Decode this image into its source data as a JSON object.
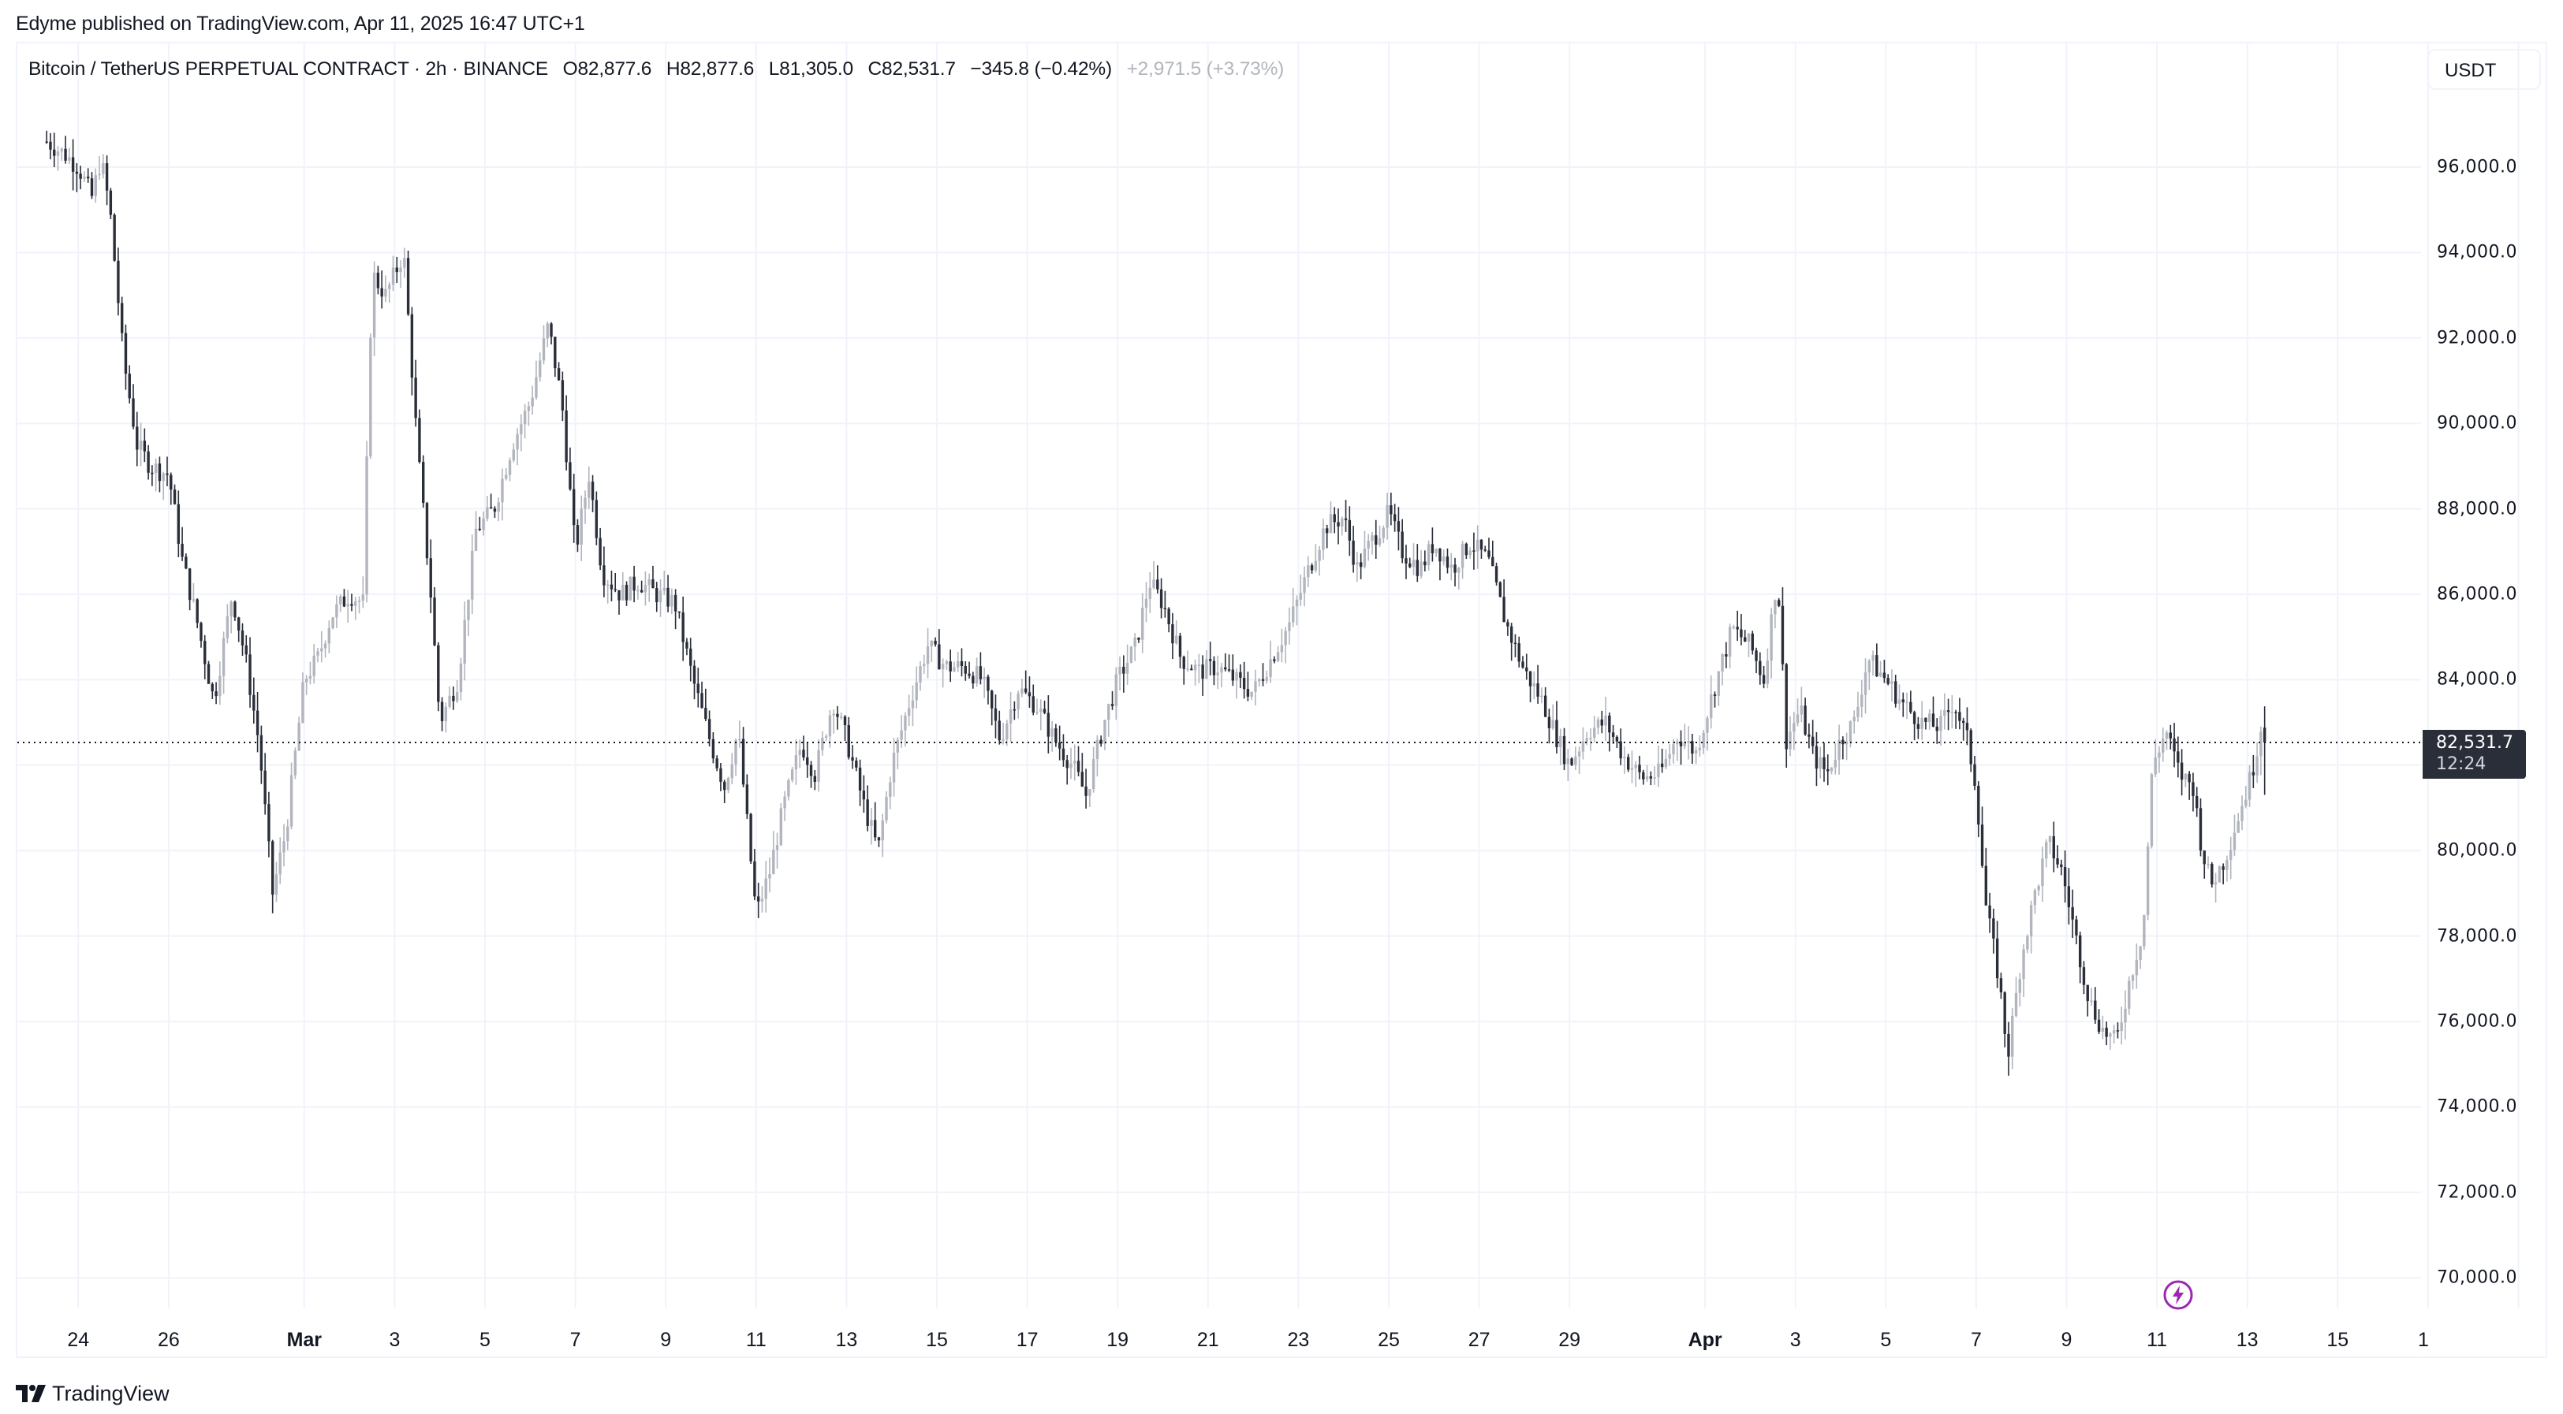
{
  "header": {
    "publisher_line": "Edyme published on TradingView.com, Apr 11, 2025 16:47 UTC+1"
  },
  "legend": {
    "symbol": "Bitcoin / TetherUS PERPETUAL CONTRACT · 2h · BINANCE",
    "open": "O82,877.6",
    "high": "H82,877.6",
    "low": "L81,305.0",
    "close": "C82,531.7",
    "change": "−345.8 (−0.42%)",
    "extra_change": "+2,971.5 (+3.73%)"
  },
  "currency_button": {
    "label": "USDT"
  },
  "last_price": {
    "value": "82,531.7",
    "countdown": "12:24",
    "bg_color": "#2a2e39"
  },
  "price_axis": {
    "labels": [
      "96,000.0",
      "94,000.0",
      "92,000.0",
      "90,000.0",
      "88,000.0",
      "86,000.0",
      "84,000.0",
      "80,000.0",
      "78,000.0",
      "76,000.0",
      "74,000.0",
      "72,000.0",
      "70,000.0"
    ]
  },
  "time_axis": {
    "labels": [
      {
        "text": "24",
        "bold": false
      },
      {
        "text": "26",
        "bold": false
      },
      {
        "text": "Mar",
        "bold": true
      },
      {
        "text": "3",
        "bold": false
      },
      {
        "text": "5",
        "bold": false
      },
      {
        "text": "7",
        "bold": false
      },
      {
        "text": "9",
        "bold": false
      },
      {
        "text": "11",
        "bold": false
      },
      {
        "text": "13",
        "bold": false
      },
      {
        "text": "15",
        "bold": false
      },
      {
        "text": "17",
        "bold": false
      },
      {
        "text": "19",
        "bold": false
      },
      {
        "text": "21",
        "bold": false
      },
      {
        "text": "23",
        "bold": false
      },
      {
        "text": "25",
        "bold": false
      },
      {
        "text": "27",
        "bold": false
      },
      {
        "text": "29",
        "bold": false
      },
      {
        "text": "Apr",
        "bold": true
      },
      {
        "text": "3",
        "bold": false
      },
      {
        "text": "5",
        "bold": false
      },
      {
        "text": "7",
        "bold": false
      },
      {
        "text": "9",
        "bold": false
      },
      {
        "text": "11",
        "bold": false
      },
      {
        "text": "13",
        "bold": false
      },
      {
        "text": "15",
        "bold": false
      },
      {
        "text": "1",
        "bold": false
      }
    ]
  },
  "footer": {
    "logo_text": "TradingView"
  },
  "icons": {
    "event_marker": "lightning-bolt-icon",
    "logo": "tradingview-logo-icon"
  },
  "colors": {
    "up_candle": "#b2b5be",
    "down_candle": "#2a2e39",
    "grid": "#f0f3fa",
    "event_marker": "#9c27b0",
    "text": "#131722",
    "muted": "#b2b5be"
  },
  "chart_data": {
    "type": "candlestick",
    "title": "Bitcoin / TetherUS PERPETUAL CONTRACT · 2h · BINANCE",
    "xlabel": "",
    "ylabel": "USDT",
    "ylim": [
      69500,
      97500
    ],
    "yticks": [
      70000,
      72000,
      74000,
      76000,
      78000,
      80000,
      82000,
      84000,
      86000,
      88000,
      90000,
      92000,
      94000,
      96000
    ],
    "grid": true,
    "interval": "2h",
    "last_price": 82531.7,
    "ohlc_last": {
      "open": 82877.6,
      "high": 82877.6,
      "low": 81305.0,
      "close": 82531.7
    },
    "x_unit": "days since Feb 23 00:00",
    "close_path": [
      [
        0.3,
        96600
      ],
      [
        0.7,
        96300
      ],
      [
        1.0,
        96000
      ],
      [
        1.3,
        95300
      ],
      [
        1.5,
        96200
      ],
      [
        1.7,
        95000
      ],
      [
        2.0,
        91500
      ],
      [
        2.3,
        89500
      ],
      [
        2.6,
        89000
      ],
      [
        3.0,
        88800
      ],
      [
        3.3,
        86800
      ],
      [
        3.6,
        85500
      ],
      [
        4.0,
        83500
      ],
      [
        4.4,
        86000
      ],
      [
        4.7,
        84500
      ],
      [
        5.0,
        82500
      ],
      [
        5.3,
        79000
      ],
      [
        5.6,
        80500
      ],
      [
        6.0,
        84000
      ],
      [
        6.3,
        84500
      ],
      [
        6.6,
        85500
      ],
      [
        7.0,
        86000
      ],
      [
        7.3,
        85800
      ],
      [
        7.5,
        93500
      ],
      [
        7.8,
        93000
      ],
      [
        8.2,
        94000
      ],
      [
        8.5,
        89500
      ],
      [
        8.8,
        86000
      ],
      [
        9.0,
        83000
      ],
      [
        9.4,
        84000
      ],
      [
        9.8,
        87500
      ],
      [
        10.2,
        88000
      ],
      [
        10.6,
        89500
      ],
      [
        11.0,
        90500
      ],
      [
        11.4,
        92300
      ],
      [
        11.7,
        90500
      ],
      [
        12.0,
        87000
      ],
      [
        12.3,
        88800
      ],
      [
        12.6,
        86500
      ],
      [
        13.0,
        86000
      ],
      [
        13.4,
        86300
      ],
      [
        13.8,
        86000
      ],
      [
        14.2,
        85800
      ],
      [
        14.6,
        84000
      ],
      [
        15.0,
        82500
      ],
      [
        15.3,
        81500
      ],
      [
        15.6,
        82800
      ],
      [
        16.0,
        78500
      ],
      [
        16.3,
        79500
      ],
      [
        16.6,
        81000
      ],
      [
        17.0,
        82500
      ],
      [
        17.3,
        81800
      ],
      [
        17.7,
        83500
      ],
      [
        18.0,
        82600
      ],
      [
        18.4,
        81000
      ],
      [
        18.7,
        80000
      ],
      [
        19.0,
        82000
      ],
      [
        19.4,
        83500
      ],
      [
        19.8,
        84800
      ],
      [
        20.2,
        84300
      ],
      [
        20.6,
        84300
      ],
      [
        21.0,
        84000
      ],
      [
        21.4,
        82600
      ],
      [
        21.8,
        83800
      ],
      [
        22.2,
        83400
      ],
      [
        22.6,
        82600
      ],
      [
        23.0,
        82000
      ],
      [
        23.3,
        81300
      ],
      [
        23.7,
        83000
      ],
      [
        24.0,
        84000
      ],
      [
        24.4,
        84800
      ],
      [
        24.7,
        86300
      ],
      [
        25.0,
        85800
      ],
      [
        25.4,
        84500
      ],
      [
        25.8,
        84200
      ],
      [
        26.2,
        84300
      ],
      [
        26.6,
        84000
      ],
      [
        27.0,
        83700
      ],
      [
        27.4,
        84500
      ],
      [
        27.8,
        85300
      ],
      [
        28.2,
        86500
      ],
      [
        28.6,
        87600
      ],
      [
        29.0,
        87800
      ],
      [
        29.3,
        86600
      ],
      [
        29.6,
        87200
      ],
      [
        30.0,
        87900
      ],
      [
        30.3,
        87000
      ],
      [
        30.7,
        86600
      ],
      [
        31.0,
        87200
      ],
      [
        31.4,
        86600
      ],
      [
        31.8,
        87200
      ],
      [
        32.2,
        86800
      ],
      [
        32.6,
        85300
      ],
      [
        33.0,
        84200
      ],
      [
        33.4,
        83500
      ],
      [
        33.7,
        82700
      ],
      [
        34.0,
        82000
      ],
      [
        34.4,
        82800
      ],
      [
        34.8,
        83000
      ],
      [
        35.2,
        82200
      ],
      [
        35.6,
        81700
      ],
      [
        36.0,
        81800
      ],
      [
        36.4,
        82700
      ],
      [
        36.8,
        82300
      ],
      [
        37.2,
        83800
      ],
      [
        37.6,
        85200
      ],
      [
        38.0,
        84800
      ],
      [
        38.3,
        84000
      ],
      [
        38.6,
        86500
      ],
      [
        38.8,
        82600
      ],
      [
        39.1,
        83300
      ],
      [
        39.4,
        82200
      ],
      [
        39.7,
        81800
      ],
      [
        40.0,
        82600
      ],
      [
        40.3,
        83000
      ],
      [
        40.6,
        84500
      ],
      [
        41.0,
        84000
      ],
      [
        41.4,
        83400
      ],
      [
        41.8,
        83000
      ],
      [
        42.2,
        82900
      ],
      [
        42.5,
        83500
      ],
      [
        42.8,
        82600
      ],
      [
        43.0,
        81500
      ],
      [
        43.2,
        78800
      ],
      [
        43.5,
        77000
      ],
      [
        43.7,
        75200
      ],
      [
        44.0,
        77500
      ],
      [
        44.3,
        79000
      ],
      [
        44.6,
        80200
      ],
      [
        44.9,
        79500
      ],
      [
        45.2,
        78000
      ],
      [
        45.5,
        76500
      ],
      [
        45.8,
        75800
      ],
      [
        46.1,
        75500
      ],
      [
        46.4,
        77000
      ],
      [
        46.7,
        78200
      ],
      [
        46.9,
        82000
      ],
      [
        47.2,
        82800
      ],
      [
        47.5,
        81800
      ],
      [
        47.8,
        81500
      ],
      [
        48.0,
        80000
      ],
      [
        48.2,
        79200
      ],
      [
        48.5,
        79800
      ],
      [
        48.8,
        80800
      ],
      [
        49.1,
        81800
      ],
      [
        49.3,
        82900
      ],
      [
        49.45,
        82531.7
      ]
    ]
  }
}
